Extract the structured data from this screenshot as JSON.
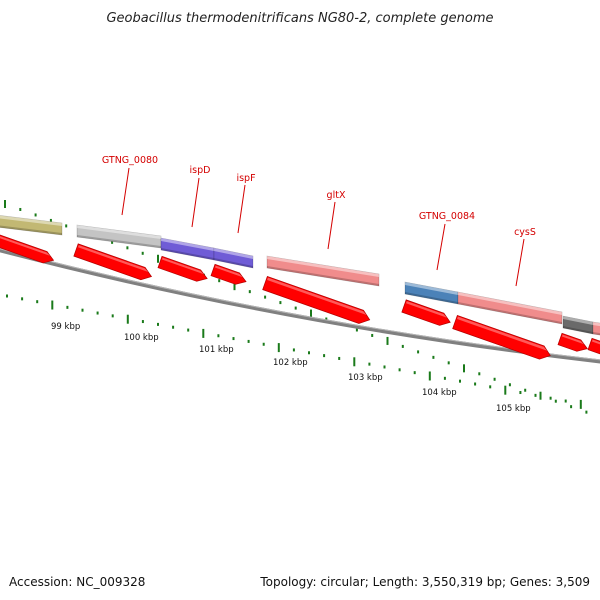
{
  "title": "Geobacillus thermodenitrificans NG80-2, complete genome",
  "accession": "Accession: NC_009328",
  "summary": "Topology: circular; Length: 3,550,319 bp; Genes: 3,509",
  "colors": {
    "cds_arrow": "#ff0000",
    "label": "#d40000",
    "tick": "#1a7a1a",
    "backbone": "#808080",
    "gene_khaki": "#c2b873",
    "gene_lightgray": "#c4c4c4",
    "gene_purple": "#6f5cd6",
    "gene_salmon": "#f08c8c",
    "gene_steelblue": "#4b82b8",
    "gene_darkgray": "#6a6a6a"
  },
  "scale_labels": [
    "99 kbp",
    "100 kbp",
    "101 kbp",
    "102 kbp",
    "103 kbp",
    "104 kbp",
    "105 kbp"
  ],
  "gene_labels": [
    {
      "name": "GTNG_0080"
    },
    {
      "name": "ispD"
    },
    {
      "name": "ispF"
    },
    {
      "name": "gltX"
    },
    {
      "name": "GTNG_0084"
    },
    {
      "name": "cysS"
    }
  ]
}
